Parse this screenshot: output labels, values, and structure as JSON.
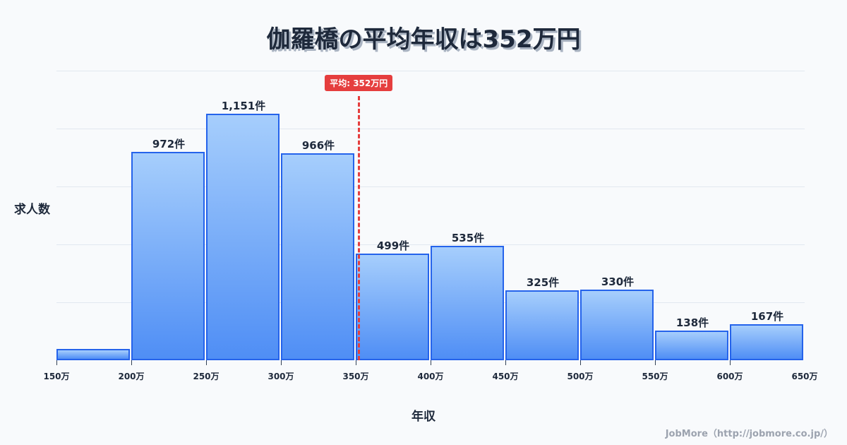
{
  "title": "伽羅橋の平均年収は352万円",
  "y_axis_label": "求人数",
  "x_axis_label": "年収",
  "average_badge": "平均: 352万円",
  "watermark": "JobMore（http://jobmore.co.jp/）",
  "colors": {
    "bar_border": "#2563eb",
    "bar_top": "#a6cefc",
    "bar_bottom": "#4f8ef5",
    "average_line": "#e53e3e",
    "background": "#f8fafc",
    "text": "#1e293b"
  },
  "x_ticks": [
    "150万",
    "200万",
    "250万",
    "300万",
    "350万",
    "400万",
    "450万",
    "500万",
    "550万",
    "600万",
    "650万"
  ],
  "bars": [
    {
      "range": "150万-200万",
      "value": 53,
      "label": ""
    },
    {
      "range": "200万-250万",
      "value": 972,
      "label": "972件"
    },
    {
      "range": "250万-300万",
      "value": 1151,
      "label": "1,151件"
    },
    {
      "range": "300万-350万",
      "value": 966,
      "label": "966件"
    },
    {
      "range": "350万-400万",
      "value": 499,
      "label": "499件"
    },
    {
      "range": "400万-450万",
      "value": 535,
      "label": "535件"
    },
    {
      "range": "450万-500万",
      "value": 325,
      "label": "325件"
    },
    {
      "range": "500万-550万",
      "value": 330,
      "label": "330件"
    },
    {
      "range": "550万-600万",
      "value": 138,
      "label": "138件"
    },
    {
      "range": "600万-650万",
      "value": 167,
      "label": "167件"
    }
  ],
  "chart_data": {
    "type": "bar",
    "title": "伽羅橋の平均年収は352万円",
    "xlabel": "年収",
    "ylabel": "求人数",
    "categories": [
      "150万-200万",
      "200万-250万",
      "250万-300万",
      "300万-350万",
      "350万-400万",
      "400万-450万",
      "450万-500万",
      "500万-550万",
      "550万-600万",
      "600万-650万"
    ],
    "values": [
      53,
      972,
      1151,
      966,
      499,
      535,
      325,
      330,
      138,
      167
    ],
    "value_labels": [
      "",
      "972件",
      "1,151件",
      "966件",
      "499件",
      "535件",
      "325件",
      "330件",
      "138件",
      "167件"
    ],
    "x_tick_labels": [
      "150万",
      "200万",
      "250万",
      "300万",
      "350万",
      "400万",
      "450万",
      "500万",
      "550万",
      "600万",
      "650万"
    ],
    "annotations": [
      {
        "type": "vline",
        "x": 352,
        "label": "平均: 352万円",
        "style": "dashed",
        "color": "#e53e3e"
      }
    ],
    "grid": "horizontal",
    "legend": "none",
    "ylim": [
      0,
      1350
    ]
  }
}
